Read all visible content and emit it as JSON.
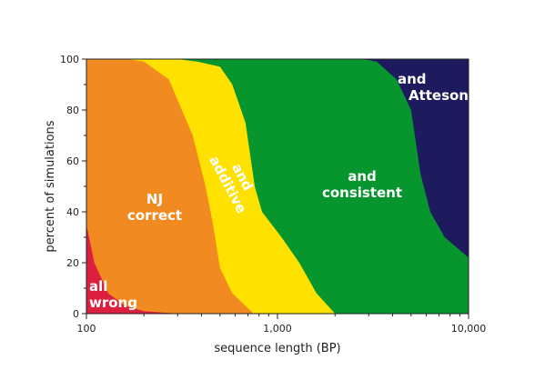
{
  "chart_data": {
    "type": "area",
    "xscale": "log",
    "xlabel": "sequence length (BP)",
    "ylabel": "percent of simulations",
    "xlim": [
      100,
      10000
    ],
    "ylim": [
      0,
      100
    ],
    "x_ticks": [
      {
        "value": 100,
        "label": "100"
      },
      {
        "value": 1000,
        "label": "1,000"
      },
      {
        "value": 10000,
        "label": "10,000"
      }
    ],
    "y_ticks": [
      {
        "value": 0,
        "label": "0"
      },
      {
        "value": 20,
        "label": "20"
      },
      {
        "value": 40,
        "label": "40"
      },
      {
        "value": 60,
        "label": "60"
      },
      {
        "value": 80,
        "label": "80"
      },
      {
        "value": 100,
        "label": "100"
      }
    ],
    "boundaries": [
      {
        "lower": "all wrong",
        "upper": "NJ correct",
        "points": [
          [
            100,
            35
          ],
          [
            110,
            20
          ],
          [
            130,
            8
          ],
          [
            160,
            3
          ],
          [
            200,
            1
          ],
          [
            300,
            0
          ]
        ]
      },
      {
        "lower": "NJ correct",
        "upper": "and additive",
        "points": [
          [
            160,
            100
          ],
          [
            200,
            99
          ],
          [
            270,
            92
          ],
          [
            360,
            70
          ],
          [
            420,
            50
          ],
          [
            460,
            35
          ],
          [
            500,
            18
          ],
          [
            580,
            8
          ],
          [
            750,
            0
          ]
        ]
      },
      {
        "lower": "and additive",
        "upper": "and consistent",
        "points": [
          [
            300,
            100
          ],
          [
            380,
            99
          ],
          [
            500,
            97
          ],
          [
            580,
            90
          ],
          [
            680,
            75
          ],
          [
            760,
            50
          ],
          [
            830,
            40
          ],
          [
            1050,
            30
          ],
          [
            1300,
            20
          ],
          [
            1600,
            8
          ],
          [
            2000,
            0
          ]
        ]
      },
      {
        "lower": "and consistent",
        "upper": "and Atteson",
        "points": [
          [
            2800,
            100
          ],
          [
            3300,
            99
          ],
          [
            4200,
            92
          ],
          [
            5000,
            80
          ],
          [
            5600,
            55
          ],
          [
            6300,
            40
          ],
          [
            7500,
            30
          ],
          [
            10000,
            22
          ]
        ]
      }
    ],
    "regions": [
      {
        "label_lines": [
          "all",
          "wrong"
        ],
        "color": "#dc1f3e"
      },
      {
        "label_lines": [
          "NJ",
          "correct"
        ],
        "color": "#f18a21"
      },
      {
        "label_lines": [
          "and",
          "additive"
        ],
        "color": "#ffe100"
      },
      {
        "label_lines": [
          "and",
          "consistent"
        ],
        "color": "#06962d"
      },
      {
        "label_lines": [
          "and",
          "Atteson"
        ],
        "color": "#1e1a5e"
      }
    ],
    "grid": false,
    "legend": "none"
  }
}
